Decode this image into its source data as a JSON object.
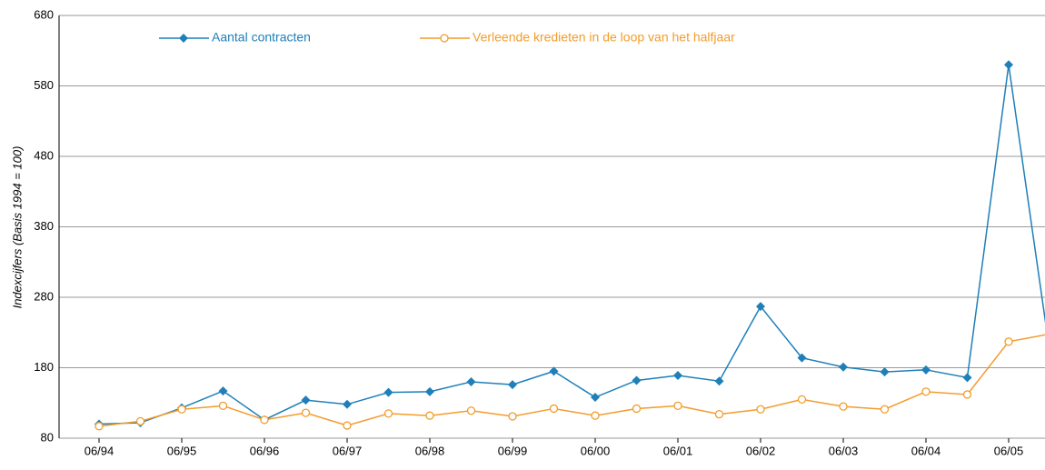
{
  "chart_data": {
    "type": "line",
    "y_label": "Indexcijfers (Basis 1994 = 100)",
    "categories": [
      "06/94",
      null,
      "06/95",
      null,
      "06/96",
      null,
      "06/97",
      null,
      "06/98",
      null,
      "06/99",
      null,
      "06/00",
      null,
      "06/01",
      null,
      "06/02",
      null,
      "06/03",
      null,
      "06/04",
      null,
      "06/05",
      null
    ],
    "series": [
      {
        "name": "Aantal contracten",
        "color": "#1f7fb8",
        "marker": "diamond",
        "values": [
          100,
          102,
          123,
          147,
          106,
          134,
          128,
          145,
          146,
          160,
          156,
          175,
          138,
          162,
          169,
          161,
          267,
          194,
          181,
          174,
          177,
          166,
          610,
          200
        ]
      },
      {
        "name": "Verleende kredieten in de loop van het halfjaar",
        "color": "#f39c2b",
        "marker": "circle",
        "values": [
          97,
          104,
          121,
          126,
          106,
          116,
          98,
          115,
          112,
          119,
          111,
          122,
          112,
          122,
          126,
          114,
          121,
          135,
          125,
          121,
          146,
          142,
          217,
          228
        ]
      }
    ],
    "ylim": [
      80,
      680
    ],
    "yticks": [
      80,
      180,
      280,
      380,
      480,
      580,
      680
    ],
    "grid": true
  }
}
